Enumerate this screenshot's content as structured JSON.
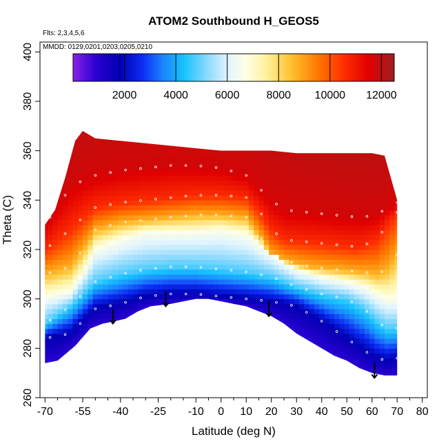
{
  "chart_data": {
    "type": "heatmap",
    "title": "ATOM2 Southbound H_GEOS5",
    "xlabel": "Latitude (deg N)",
    "ylabel": "Theta (C)",
    "xlim": [
      -72,
      82
    ],
    "ylim": [
      260,
      404
    ],
    "x_ticks": [
      -70,
      -55,
      -40,
      -25,
      -10,
      0,
      10,
      20,
      30,
      40,
      50,
      60,
      70,
      80
    ],
    "x_tick_labels": [
      "-70",
      "-55",
      "-40",
      "-25",
      "-10",
      "0",
      "10",
      "20",
      "30",
      "40",
      "50",
      "60",
      "70",
      "80"
    ],
    "x_minor_ticks": [
      -65,
      -60,
      -50,
      -45,
      -35,
      -30,
      -20,
      -15,
      -5,
      5,
      15,
      25,
      35,
      45,
      55,
      65,
      75
    ],
    "y_ticks": [
      260,
      280,
      300,
      320,
      340,
      360,
      380,
      400
    ],
    "y_tick_labels": [
      "260",
      "280",
      "300",
      "320",
      "340",
      "360",
      "380",
      "400"
    ],
    "flights_label": "Flts: 2,3,4,5,6",
    "dates_label": "MMDD: 0129,0201,0203,0205,0210",
    "colorbar": {
      "range": [
        0,
        12500
      ],
      "ticks": [
        2000,
        4000,
        6000,
        8000,
        10000,
        12000
      ],
      "tick_labels": [
        "2000",
        "4000",
        "6000",
        "8000",
        "10000",
        "12000"
      ],
      "stops": [
        {
          "v": 0,
          "c": "#8a1fe6"
        },
        {
          "v": 900,
          "c": "#2a00d2"
        },
        {
          "v": 1800,
          "c": "#0000b0"
        },
        {
          "v": 2700,
          "c": "#0c2cf2"
        },
        {
          "v": 3500,
          "c": "#1b84ff"
        },
        {
          "v": 4300,
          "c": "#16c2ff"
        },
        {
          "v": 5200,
          "c": "#8ad8ff"
        },
        {
          "v": 6000,
          "c": "#dff4ff"
        },
        {
          "v": 6700,
          "c": "#ffffe6"
        },
        {
          "v": 7500,
          "c": "#fff2a0"
        },
        {
          "v": 8500,
          "c": "#ffc030"
        },
        {
          "v": 9500,
          "c": "#ff7a00"
        },
        {
          "v": 10500,
          "c": "#ff3000"
        },
        {
          "v": 11500,
          "c": "#e00000"
        },
        {
          "v": 12500,
          "c": "#9e1f1f"
        }
      ]
    },
    "surface_theta": [
      [
        -70,
        274
      ],
      [
        -65,
        275
      ],
      [
        -58,
        281
      ],
      [
        -52,
        288
      ],
      [
        -47,
        290
      ],
      [
        -42,
        291
      ],
      [
        -38,
        292
      ],
      [
        -33,
        295
      ],
      [
        -28,
        297
      ],
      [
        -20,
        298
      ],
      [
        -15,
        299
      ],
      [
        -10,
        300
      ],
      [
        -5,
        300
      ],
      [
        0,
        299
      ],
      [
        5,
        298
      ],
      [
        10,
        297
      ],
      [
        15,
        295
      ],
      [
        20,
        293
      ],
      [
        25,
        290
      ],
      [
        30,
        286
      ],
      [
        35,
        283
      ],
      [
        40,
        280
      ],
      [
        45,
        277
      ],
      [
        50,
        275
      ],
      [
        55,
        272
      ],
      [
        60,
        270
      ],
      [
        65,
        269
      ],
      [
        70,
        269
      ]
    ],
    "top_theta": [
      [
        -70,
        330
      ],
      [
        -66,
        336
      ],
      [
        -62,
        349
      ],
      [
        -58,
        364
      ],
      [
        -55,
        368
      ],
      [
        -50,
        365
      ],
      [
        -40,
        364
      ],
      [
        -30,
        363
      ],
      [
        -20,
        362
      ],
      [
        -10,
        361
      ],
      [
        0,
        360
      ],
      [
        10,
        360
      ],
      [
        20,
        360
      ],
      [
        30,
        359
      ],
      [
        40,
        359
      ],
      [
        50,
        359
      ],
      [
        60,
        359
      ],
      [
        65,
        358
      ],
      [
        70,
        340
      ]
    ],
    "series": [
      {
        "name": "iso_2000",
        "points": [
          [
            -70,
            284
          ],
          [
            -60,
            286
          ],
          [
            -50,
            296
          ],
          [
            -40,
            298
          ],
          [
            -30,
            301
          ],
          [
            -20,
            302
          ],
          [
            -10,
            302
          ],
          [
            0,
            301
          ],
          [
            10,
            300
          ],
          [
            20,
            299
          ],
          [
            30,
            297
          ],
          [
            40,
            291
          ],
          [
            50,
            284
          ],
          [
            57,
            279
          ],
          [
            62,
            276
          ],
          [
            66,
            275
          ],
          [
            70,
            276
          ]
        ]
      },
      {
        "name": "iso_4000",
        "points": [
          [
            -70,
            290
          ],
          [
            -60,
            297
          ],
          [
            -50,
            307
          ],
          [
            -40,
            310
          ],
          [
            -30,
            312
          ],
          [
            -20,
            313
          ],
          [
            -10,
            313
          ],
          [
            0,
            312
          ],
          [
            10,
            311
          ],
          [
            20,
            309
          ],
          [
            30,
            305
          ],
          [
            40,
            302
          ],
          [
            50,
            300
          ],
          [
            57,
            296
          ],
          [
            62,
            291
          ],
          [
            66,
            288
          ],
          [
            70,
            288
          ]
        ]
      },
      {
        "name": "iso_6000",
        "points": [
          [
            -70,
            301
          ],
          [
            -60,
            303
          ],
          [
            -55,
            310
          ],
          [
            -50,
            320
          ],
          [
            -40,
            324
          ],
          [
            -30,
            327
          ],
          [
            -20,
            327
          ],
          [
            -10,
            327
          ],
          [
            0,
            328
          ],
          [
            10,
            326
          ],
          [
            18,
            320
          ],
          [
            25,
            315
          ],
          [
            30,
            312
          ],
          [
            40,
            309
          ],
          [
            50,
            307
          ],
          [
            57,
            305
          ],
          [
            62,
            302
          ],
          [
            66,
            300
          ],
          [
            70,
            300
          ]
        ]
      },
      {
        "name": "iso_8000",
        "points": [
          [
            -70,
            310
          ],
          [
            -60,
            313
          ],
          [
            -55,
            320
          ],
          [
            -50,
            328
          ],
          [
            -40,
            331
          ],
          [
            -30,
            332
          ],
          [
            -20,
            333
          ],
          [
            -10,
            334
          ],
          [
            0,
            334
          ],
          [
            10,
            333
          ],
          [
            15,
            326
          ],
          [
            20,
            318
          ],
          [
            27,
            315
          ],
          [
            35,
            313
          ],
          [
            45,
            312
          ],
          [
            55,
            311
          ],
          [
            62,
            310
          ],
          [
            66,
            312
          ],
          [
            70,
            318
          ]
        ]
      },
      {
        "name": "iso_10000",
        "points": [
          [
            -70,
            320
          ],
          [
            -60,
            328
          ],
          [
            -55,
            333
          ],
          [
            -50,
            337
          ],
          [
            -40,
            339
          ],
          [
            -30,
            340
          ],
          [
            -20,
            341
          ],
          [
            -10,
            342
          ],
          [
            0,
            342
          ],
          [
            10,
            341
          ],
          [
            15,
            336
          ],
          [
            20,
            328
          ],
          [
            25,
            324
          ],
          [
            35,
            323
          ],
          [
            45,
            322
          ],
          [
            55,
            321
          ],
          [
            62,
            324
          ],
          [
            66,
            330
          ],
          [
            70,
            335
          ]
        ]
      },
      {
        "name": "iso_11500",
        "points": [
          [
            -70,
            330
          ],
          [
            -60,
            345
          ],
          [
            -55,
            348
          ],
          [
            -50,
            350
          ],
          [
            -40,
            352
          ],
          [
            -30,
            353
          ],
          [
            -20,
            354
          ],
          [
            -10,
            354
          ],
          [
            0,
            353
          ],
          [
            10,
            350
          ],
          [
            15,
            345
          ],
          [
            20,
            340
          ],
          [
            25,
            336
          ],
          [
            35,
            335
          ],
          [
            45,
            334
          ],
          [
            55,
            333
          ],
          [
            62,
            334
          ],
          [
            66,
            337
          ],
          [
            70,
            339
          ]
        ]
      }
    ],
    "arrows": [
      [
        -43,
        296
      ],
      [
        -22,
        303
      ],
      [
        19,
        299
      ],
      [
        61,
        274
      ]
    ]
  }
}
